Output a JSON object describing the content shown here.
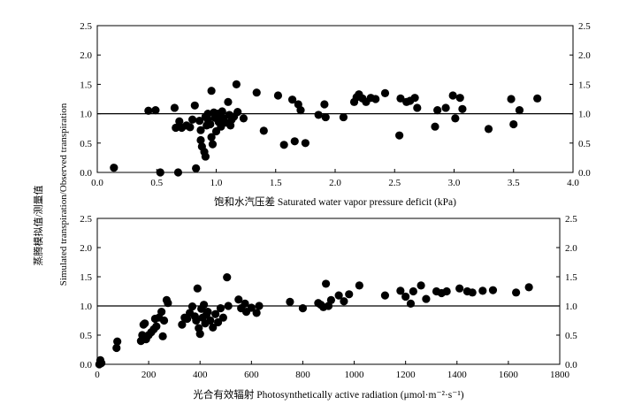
{
  "ylabel_line1": "蒸腾模拟值/测量值",
  "ylabel_line2": "Simulated transpiration/Observed transpiration",
  "chart_data": [
    {
      "type": "scatter",
      "xlabel": "饱和水汽压差 Saturated water vapor pressure deficit (kPa)",
      "xlim": [
        0,
        4.0
      ],
      "ylim": [
        0,
        2.5
      ],
      "x_ticks": [
        "0.0",
        "0.5",
        "1.0",
        "1.5",
        "2.0",
        "2.5",
        "3.0",
        "3.5",
        "4.0"
      ],
      "y_ticks": [
        "0.0",
        "0.5",
        "1.0",
        "1.5",
        "2.0",
        "2.5"
      ],
      "reference_line_y": 1.0,
      "points": [
        [
          0.14,
          0.08
        ],
        [
          0.43,
          1.05
        ],
        [
          0.49,
          1.06
        ],
        [
          0.53,
          0.0
        ],
        [
          0.65,
          1.1
        ],
        [
          0.66,
          0.76
        ],
        [
          0.68,
          0.0
        ],
        [
          0.69,
          0.87
        ],
        [
          0.71,
          0.76
        ],
        [
          0.75,
          0.8
        ],
        [
          0.78,
          0.77
        ],
        [
          0.8,
          0.9
        ],
        [
          0.82,
          1.14
        ],
        [
          0.83,
          0.07
        ],
        [
          0.86,
          0.88
        ],
        [
          0.87,
          0.72
        ],
        [
          0.87,
          0.55
        ],
        [
          0.88,
          0.44
        ],
        [
          0.9,
          0.35
        ],
        [
          0.91,
          0.95
        ],
        [
          0.91,
          0.27
        ],
        [
          0.92,
          0.8
        ],
        [
          0.93,
          1.0
        ],
        [
          0.93,
          0.9
        ],
        [
          0.95,
          0.82
        ],
        [
          0.96,
          1.39
        ],
        [
          0.96,
          0.6
        ],
        [
          0.97,
          0.48
        ],
        [
          0.98,
          1.02
        ],
        [
          0.99,
          0.93
        ],
        [
          1.0,
          0.7
        ],
        [
          1.01,
          1.0
        ],
        [
          1.02,
          0.86
        ],
        [
          1.03,
          0.95
        ],
        [
          1.04,
          0.78
        ],
        [
          1.05,
          1.04
        ],
        [
          1.06,
          0.92
        ],
        [
          1.08,
          0.85
        ],
        [
          1.1,
          1.2
        ],
        [
          1.11,
          0.98
        ],
        [
          1.12,
          0.8
        ],
        [
          1.13,
          0.9
        ],
        [
          1.15,
          0.95
        ],
        [
          1.17,
          1.5
        ],
        [
          1.18,
          1.03
        ],
        [
          1.23,
          0.92
        ],
        [
          1.34,
          1.36
        ],
        [
          1.4,
          0.71
        ],
        [
          1.52,
          1.31
        ],
        [
          1.57,
          0.47
        ],
        [
          1.64,
          1.24
        ],
        [
          1.66,
          0.53
        ],
        [
          1.69,
          1.16
        ],
        [
          1.71,
          1.06
        ],
        [
          1.75,
          0.5
        ],
        [
          1.86,
          0.98
        ],
        [
          1.91,
          1.16
        ],
        [
          1.92,
          0.94
        ],
        [
          2.07,
          0.94
        ],
        [
          2.16,
          1.2
        ],
        [
          2.18,
          1.28
        ],
        [
          2.2,
          1.33
        ],
        [
          2.23,
          1.26
        ],
        [
          2.26,
          1.2
        ],
        [
          2.3,
          1.27
        ],
        [
          2.34,
          1.25
        ],
        [
          2.42,
          1.35
        ],
        [
          2.54,
          0.63
        ],
        [
          2.55,
          1.26
        ],
        [
          2.6,
          1.2
        ],
        [
          2.63,
          1.22
        ],
        [
          2.67,
          1.27
        ],
        [
          2.69,
          1.1
        ],
        [
          2.84,
          0.78
        ],
        [
          2.86,
          1.06
        ],
        [
          2.93,
          1.1
        ],
        [
          2.99,
          1.31
        ],
        [
          3.01,
          0.92
        ],
        [
          3.05,
          1.27
        ],
        [
          3.07,
          1.08
        ],
        [
          3.29,
          0.74
        ],
        [
          3.48,
          1.25
        ],
        [
          3.5,
          0.82
        ],
        [
          3.55,
          1.06
        ],
        [
          3.7,
          1.26
        ]
      ]
    },
    {
      "type": "scatter",
      "xlabel": "光合有效辐射 Photosynthetically active radiation (μmol·m⁻²·s⁻¹)",
      "xlim": [
        0,
        1800
      ],
      "ylim": [
        0,
        2.5
      ],
      "x_ticks": [
        "0",
        "200",
        "400",
        "600",
        "800",
        "1000",
        "1200",
        "1400",
        "1600",
        "1800"
      ],
      "y_ticks": [
        "0.0",
        "0.5",
        "1.0",
        "1.5",
        "2.0",
        "2.5"
      ],
      "reference_line_y": 1.0,
      "points": [
        [
          8,
          0.0
        ],
        [
          12,
          0.07
        ],
        [
          16,
          0.02
        ],
        [
          75,
          0.28
        ],
        [
          78,
          0.39
        ],
        [
          170,
          0.4
        ],
        [
          175,
          0.5
        ],
        [
          180,
          0.68
        ],
        [
          185,
          0.7
        ],
        [
          190,
          0.43
        ],
        [
          200,
          0.5
        ],
        [
          210,
          0.55
        ],
        [
          220,
          0.6
        ],
        [
          225,
          0.78
        ],
        [
          230,
          0.65
        ],
        [
          240,
          0.8
        ],
        [
          250,
          0.9
        ],
        [
          255,
          0.48
        ],
        [
          260,
          0.75
        ],
        [
          270,
          1.1
        ],
        [
          275,
          1.05
        ],
        [
          330,
          0.68
        ],
        [
          340,
          0.8
        ],
        [
          350,
          0.78
        ],
        [
          360,
          0.88
        ],
        [
          370,
          0.99
        ],
        [
          380,
          0.82
        ],
        [
          385,
          0.75
        ],
        [
          390,
          1.3
        ],
        [
          395,
          0.62
        ],
        [
          400,
          0.52
        ],
        [
          405,
          0.95
        ],
        [
          410,
          0.8
        ],
        [
          415,
          1.02
        ],
        [
          420,
          0.7
        ],
        [
          425,
          0.85
        ],
        [
          430,
          0.9
        ],
        [
          440,
          0.75
        ],
        [
          450,
          0.63
        ],
        [
          460,
          0.86
        ],
        [
          470,
          0.72
        ],
        [
          480,
          0.96
        ],
        [
          490,
          0.8
        ],
        [
          505,
          1.49
        ],
        [
          510,
          1.0
        ],
        [
          550,
          1.11
        ],
        [
          560,
          0.96
        ],
        [
          575,
          1.04
        ],
        [
          580,
          0.9
        ],
        [
          600,
          0.97
        ],
        [
          620,
          0.88
        ],
        [
          630,
          1.0
        ],
        [
          750,
          1.07
        ],
        [
          800,
          0.96
        ],
        [
          860,
          1.05
        ],
        [
          870,
          1.02
        ],
        [
          880,
          0.98
        ],
        [
          890,
          1.38
        ],
        [
          900,
          1.0
        ],
        [
          910,
          1.1
        ],
        [
          940,
          1.18
        ],
        [
          960,
          1.08
        ],
        [
          980,
          1.2
        ],
        [
          1020,
          1.35
        ],
        [
          1120,
          1.18
        ],
        [
          1180,
          1.26
        ],
        [
          1200,
          1.16
        ],
        [
          1220,
          1.04
        ],
        [
          1230,
          1.25
        ],
        [
          1260,
          1.35
        ],
        [
          1280,
          1.12
        ],
        [
          1320,
          1.25
        ],
        [
          1340,
          1.22
        ],
        [
          1360,
          1.25
        ],
        [
          1410,
          1.3
        ],
        [
          1440,
          1.25
        ],
        [
          1460,
          1.23
        ],
        [
          1500,
          1.26
        ],
        [
          1540,
          1.27
        ],
        [
          1630,
          1.23
        ],
        [
          1680,
          1.32
        ]
      ]
    }
  ]
}
